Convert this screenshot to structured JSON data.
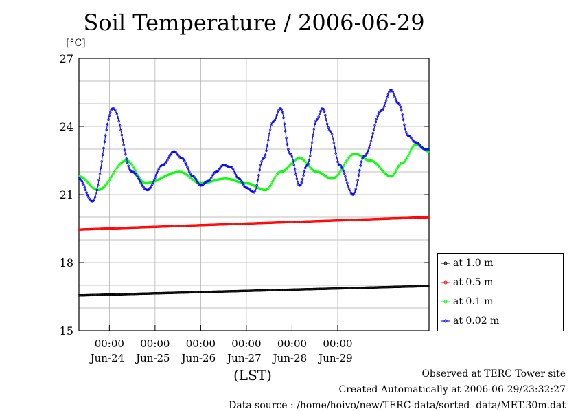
{
  "title": "Soil Temperature / 2006-06-29",
  "unit_label": "[°C]",
  "xlabel": "(LST)",
  "footer": {
    "line1": "Observed at TERC Tower site",
    "line2": "Created Automatically at 2006-06-29/23:32:27",
    "line3": "Data source : /home/hoivo/new/TERC-data/sorted  data/MET.30m.dat"
  },
  "chart_data": {
    "type": "line",
    "title": "Soil Temperature / 2006-06-29",
    "ylabel": "[°C]",
    "xlabel": "(LST)",
    "ylim": [
      15,
      27
    ],
    "yticks": [
      "15",
      "18",
      "21",
      "24",
      "27"
    ],
    "xlim": [
      "2006-06-23 08:00",
      "2006-06-30 00:00"
    ],
    "xticks": [
      {
        "time": "00:00",
        "date": "Jun-24"
      },
      {
        "time": "00:00",
        "date": "Jun-25"
      },
      {
        "time": "00:00",
        "date": "Jun-26"
      },
      {
        "time": "00:00",
        "date": "Jun-27"
      },
      {
        "time": "00:00",
        "date": "Jun-28"
      },
      {
        "time": "00:00",
        "date": "Jun-29"
      }
    ],
    "grid": true,
    "legend_position": "right",
    "series": [
      {
        "name": "at 1.0 m",
        "color": "#000000",
        "hours_from_start": [
          0,
          184
        ],
        "values": [
          16.55,
          16.97
        ]
      },
      {
        "name": "at 0.5 m",
        "color": "#ff0000",
        "hours_from_start": [
          0,
          184
        ],
        "values": [
          19.45,
          20.0
        ]
      },
      {
        "name": "at 0.1 m",
        "color": "#00ff00",
        "hours_from_start": [
          0,
          10,
          25,
          35,
          53,
          64,
          77,
          88,
          98,
          106,
          116,
          125,
          133,
          145,
          153,
          164,
          170,
          177,
          184
        ],
        "values": [
          21.8,
          21.2,
          22.5,
          21.5,
          22.0,
          21.5,
          21.7,
          21.5,
          21.2,
          22.0,
          22.6,
          22.0,
          21.7,
          22.8,
          22.5,
          21.8,
          22.4,
          23.2,
          22.9
        ]
      },
      {
        "name": "at 0.02 m",
        "color": "#0000ff",
        "hours_from_start": [
          0,
          7,
          18,
          28,
          36,
          44,
          50,
          54,
          60,
          64,
          68,
          72,
          76,
          80,
          84,
          88,
          92,
          97,
          102,
          106,
          111,
          116,
          120,
          125,
          128,
          132,
          137,
          144,
          150,
          159,
          164,
          168,
          173,
          177,
          182,
          184
        ],
        "values": [
          21.7,
          20.7,
          24.8,
          22.0,
          21.2,
          22.3,
          22.9,
          22.6,
          21.8,
          21.4,
          21.6,
          22.0,
          22.3,
          22.2,
          21.7,
          21.3,
          21.1,
          22.6,
          24.2,
          24.8,
          22.8,
          21.4,
          22.3,
          24.3,
          24.8,
          23.8,
          22.3,
          21.0,
          22.7,
          24.7,
          25.6,
          25.0,
          23.6,
          23.3,
          23.0,
          23.0
        ]
      }
    ]
  }
}
